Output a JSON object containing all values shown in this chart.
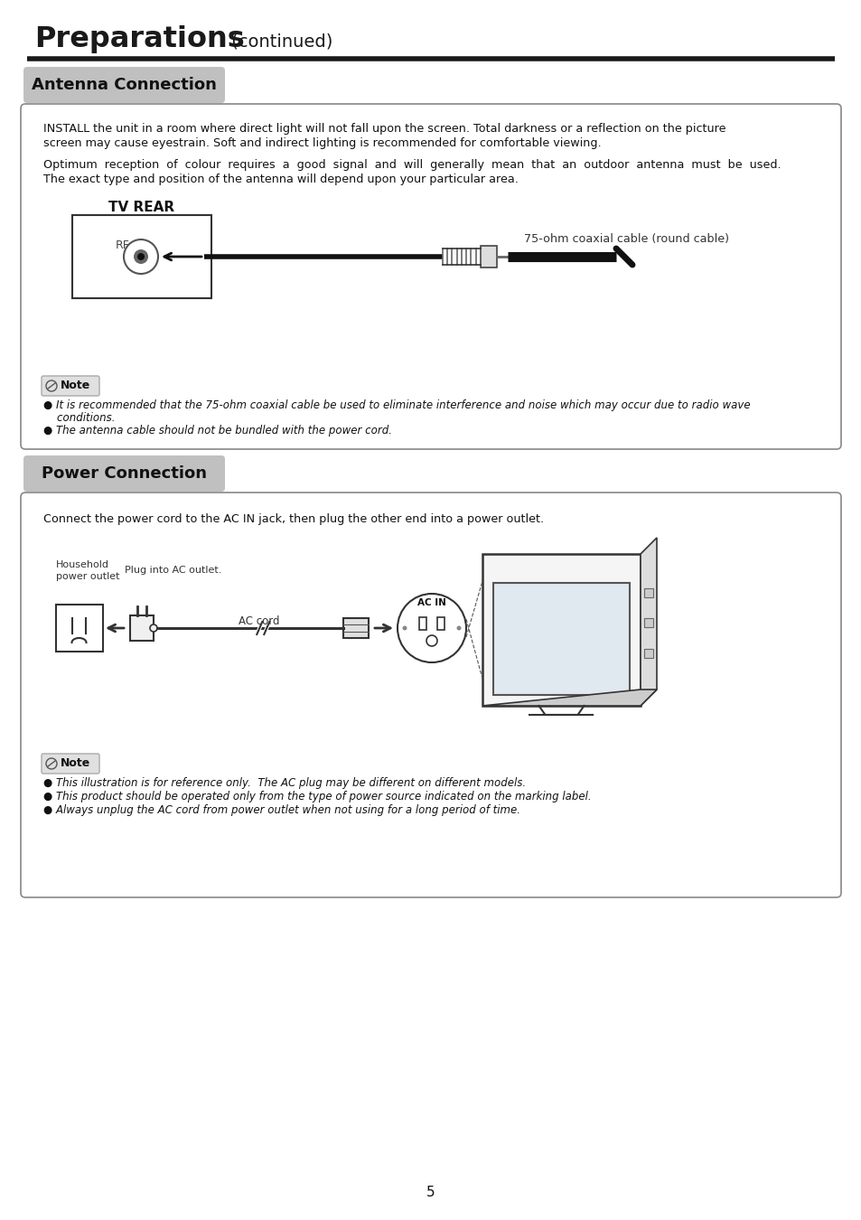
{
  "page_bg": "#ffffff",
  "title_bold": "Preparations",
  "title_normal": " (continued)",
  "section1_label": "Antenna Connection",
  "section2_label": "Power Connection",
  "antenna_para1_line1": "INSTALL the unit in a room where direct light will not fall upon the screen. Total darkness or a reflection on the picture",
  "antenna_para1_line2": "screen may cause eyestrain. Soft and indirect lighting is recommended for comfortable viewing.",
  "antenna_para2_line1": "Optimum  reception  of  colour  requires  a  good  signal  and  will  generally  mean  that  an  outdoor  antenna  must  be  used.",
  "antenna_para2_line2": "The exact type and position of the antenna will depend upon your particular area.",
  "tv_rear_label": "TV REAR",
  "rf_label": "RF",
  "cable_label": "75-ohm coaxial cable (round cable)",
  "note1_line1": "● It is recommended that the 75-ohm coaxial cable be used to eliminate interference and noise which may occur due to radio wave",
  "note1_line2": "    conditions.",
  "note1_line3": "● The antenna cable should not be bundled with the power cord.",
  "power_para": "Connect the power cord to the AC IN jack, then plug the other end into a power outlet.",
  "household_label1": "Household",
  "household_label2": "power outlet",
  "plug_label": "Plug into AC outlet.",
  "ac_cord_label": "AC cord",
  "ac_in_label": "AC IN",
  "note2_line1": "● This illustration is for reference only.  The AC plug may be different on different models.",
  "note2_line2": "● This product should be operated only from the type of power source indicated on the marking label.",
  "note2_line3": "● Always unplug the AC cord from power outlet when not using for a long period of time.",
  "page_number": "5"
}
